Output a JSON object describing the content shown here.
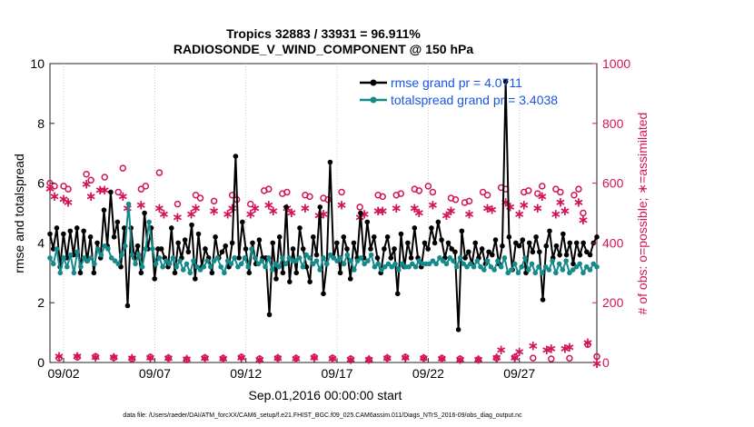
{
  "chart_data": {
    "type": "line",
    "title_line1": "Tropics 32883 / 33931 = 96.911%",
    "title_line2": "RADIOSONDE_V_WIND_COMPONENT @ 150 hPa",
    "xlabel": "Sep.01,2016 00:00:00 start",
    "ylabel_left": "rmse and totalspread",
    "ylabel_right": "# of obs: o=possible; ∗=assimilated",
    "footer": "data file: /Users/raeder/DAI/ATM_forcXX/CAM6_setup/f.e21.FHIST_BGC.f09_025.CAM6assim.011/Diags_NTrS_2016-09/obs_diag_output.nc",
    "x_ticks": [
      {
        "value": 2,
        "label": "09/02"
      },
      {
        "value": 7,
        "label": "09/07"
      },
      {
        "value": 12,
        "label": "09/12"
      },
      {
        "value": 17,
        "label": "09/17"
      },
      {
        "value": 22,
        "label": "09/22"
      },
      {
        "value": 27,
        "label": "09/27"
      }
    ],
    "xlim": [
      1.25,
      31.25
    ],
    "ylim_left": [
      0,
      10
    ],
    "ylim_right": [
      0,
      1000
    ],
    "yticks_left": [
      "0",
      "2",
      "4",
      "6",
      "8",
      "10"
    ],
    "yticks_right": [
      "0",
      "200",
      "400",
      "600",
      "800",
      "1000"
    ],
    "colors": {
      "rmse": "#000000",
      "spread": "#158a8a",
      "obs": "#d4145a",
      "legend_text": "#1a56e0"
    },
    "series": [
      {
        "name": "rmse grand pr = 4.0711",
        "key": "rmse",
        "axis": "left",
        "values": [
          4.3,
          3.8,
          4.5,
          3.2,
          4.3,
          3.5,
          4.4,
          3.6,
          4.5,
          3.0,
          4.4,
          3.4,
          4.2,
          3.0,
          4.0,
          3.5,
          5.1,
          3.9,
          5.7,
          4.2,
          4.7,
          3.2,
          4.5,
          1.9,
          4.5,
          3.5,
          3.9,
          3.0,
          5.0,
          3.8,
          4.5,
          2.8,
          3.8,
          3.8,
          3.5,
          3.2,
          4.5,
          3.0,
          4.0,
          3.5,
          4.1,
          3.7,
          4.6,
          2.8,
          4.3,
          3.2,
          3.8,
          3.5,
          3.0,
          4.2,
          3.5,
          3.7,
          3.9,
          3.2,
          4.0,
          6.9,
          3.5,
          4.7,
          3.8,
          3.0,
          4.0,
          3.3,
          4.1,
          3.5,
          3.5,
          1.6,
          4.0,
          2.8,
          4.2,
          3.0,
          5.2,
          2.7,
          3.8,
          3.0,
          4.5,
          3.8,
          3.2,
          2.7,
          4.2,
          3.6,
          5.2,
          2.3,
          3.3,
          6.7,
          3.5,
          4.0,
          3.0,
          4.2,
          3.8,
          2.8,
          4.0,
          3.5,
          5.0,
          3.5,
          4.7,
          3.8,
          4.2,
          3.5,
          3.0,
          3.8,
          4.2,
          3.5,
          3.8,
          2.3,
          4.3,
          3.2,
          4.0,
          3.5,
          4.5,
          3.5,
          3.2,
          4.0,
          3.8,
          4.5,
          4.0,
          4.7,
          4.1,
          3.5,
          4.0,
          3.8,
          3.7,
          1.1,
          4.4,
          3.5,
          3.7,
          3.3,
          4.0,
          3.5,
          3.8,
          3.3,
          3.7,
          3.6,
          4.1,
          3.3,
          3.9,
          9.4,
          4.2,
          3.1,
          4.0,
          3.9,
          4.1,
          3.0,
          4.0,
          3.7,
          4.2,
          3.7,
          2.1,
          3.9,
          4.4,
          3.5,
          3.9,
          3.6,
          4.3,
          3.6,
          4.0,
          3.3,
          4.0,
          3.6,
          4.0,
          3.7,
          3.6,
          4.0,
          4.2
        ]
      },
      {
        "name": "totalspread grand pr = 3.4038",
        "key": "spread",
        "axis": "left",
        "values": [
          3.5,
          3.3,
          3.8,
          3.0,
          3.5,
          3.2,
          3.6,
          3.0,
          3.7,
          3.2,
          3.5,
          3.4,
          3.5,
          3.3,
          3.8,
          3.6,
          3.9,
          3.8,
          3.5,
          3.4,
          3.3,
          3.6,
          3.9,
          5.3,
          3.6,
          3.3,
          3.6,
          3.2,
          3.8,
          4.7,
          3.8,
          3.3,
          3.5,
          3.2,
          3.4,
          3.3,
          3.5,
          3.2,
          3.4,
          3.1,
          3.3,
          3.0,
          3.4,
          3.2,
          3.1,
          3.2,
          3.4,
          3.2,
          3.4,
          3.5,
          3.2,
          3.0,
          3.4,
          3.3,
          3.5,
          3.2,
          3.3,
          3.5,
          3.2,
          3.8,
          3.5,
          3.3,
          3.4,
          3.2,
          3.5,
          3.1,
          3.3,
          3.2,
          3.5,
          3.3,
          3.5,
          3.4,
          3.4,
          3.5,
          3.2,
          3.6,
          3.5,
          3.3,
          3.4,
          3.1,
          3.5,
          3.3,
          3.6,
          3.5,
          3.4,
          3.5,
          3.3,
          3.6,
          3.4,
          3.1,
          3.4,
          3.5,
          3.3,
          3.4,
          3.6,
          3.2,
          3.3,
          3.1,
          3.2,
          3.3,
          3.2,
          3.3,
          3.1,
          3.3,
          3.2,
          3.2,
          3.3,
          3.2,
          3.4,
          3.3,
          3.3,
          3.3,
          3.4,
          3.3,
          3.5,
          3.4,
          3.3,
          3.5,
          3.4,
          3.2,
          3.5,
          3.3,
          3.2,
          3.3,
          3.2,
          3.4,
          3.2,
          3.1,
          3.4,
          3.2,
          3.1,
          3.4,
          3.2,
          3.5,
          3.0,
          3.1,
          3.3,
          3.0,
          3.2,
          3.5,
          3.1,
          3.3,
          3.0,
          3.2,
          3.0,
          3.2,
          3.1,
          3.4,
          3.0,
          3.3,
          3.1,
          3.4,
          3.0,
          3.1,
          3.2,
          3.3,
          3.0,
          3.2,
          3.1,
          3.3,
          3.2
        ]
      },
      {
        "name": "possible obs",
        "key": "possible",
        "axis": "right",
        "marker": "circle",
        "points": [
          [
            1.25,
            600
          ],
          [
            1.75,
            15
          ],
          [
            2.25,
            580
          ],
          [
            2.75,
            18
          ],
          [
            3.25,
            630
          ],
          [
            3.75,
            20
          ],
          [
            4.25,
            620
          ],
          [
            4.75,
            16
          ],
          [
            5.25,
            650
          ],
          [
            5.75,
            12
          ],
          [
            6.25,
            580
          ],
          [
            6.75,
            18
          ],
          [
            7.25,
            635
          ],
          [
            7.75,
            15
          ],
          [
            8.25,
            530
          ],
          [
            8.75,
            10
          ],
          [
            9.25,
            560
          ],
          [
            9.75,
            16
          ],
          [
            10.25,
            540
          ],
          [
            10.75,
            14
          ],
          [
            11.25,
            560
          ],
          [
            11.75,
            18
          ],
          [
            12.25,
            530
          ],
          [
            12.75,
            12
          ],
          [
            13.25,
            580
          ],
          [
            13.75,
            15
          ],
          [
            14.25,
            570
          ],
          [
            14.75,
            14
          ],
          [
            15.25,
            560
          ],
          [
            15.75,
            18
          ],
          [
            16.25,
            550
          ],
          [
            16.75,
            15
          ],
          [
            17.25,
            570
          ],
          [
            17.75,
            12
          ],
          [
            18.25,
            520
          ],
          [
            18.75,
            10
          ],
          [
            19.25,
            560
          ],
          [
            19.75,
            15
          ],
          [
            20.25,
            560
          ],
          [
            20.75,
            18
          ],
          [
            21.25,
            580
          ],
          [
            21.75,
            15
          ],
          [
            22.25,
            570
          ],
          [
            22.75,
            14
          ],
          [
            23.25,
            550
          ],
          [
            23.75,
            12
          ],
          [
            24.25,
            540
          ],
          [
            24.75,
            10
          ],
          [
            25.25,
            560
          ],
          [
            25.75,
            15
          ],
          [
            26.25,
            580
          ],
          [
            26.75,
            18
          ],
          [
            27.25,
            570
          ],
          [
            27.75,
            15
          ],
          [
            28.25,
            590
          ],
          [
            28.75,
            12
          ],
          [
            29.25,
            570
          ],
          [
            29.75,
            14
          ],
          [
            30.25,
            580
          ],
          [
            30.75,
            60
          ],
          [
            31.25,
            20
          ],
          [
            1.5,
            590
          ],
          [
            2.0,
            590
          ],
          [
            3.5,
            610
          ],
          [
            5.0,
            570
          ],
          [
            6.5,
            590
          ],
          [
            9.5,
            550
          ],
          [
            11.5,
            545
          ],
          [
            13.0,
            575
          ],
          [
            14.0,
            565
          ],
          [
            15.5,
            555
          ],
          [
            16.5,
            545
          ],
          [
            19.5,
            555
          ],
          [
            20.5,
            565
          ],
          [
            21.5,
            575
          ],
          [
            22.0,
            590
          ],
          [
            23.5,
            545
          ],
          [
            24.0,
            535
          ],
          [
            25.0,
            570
          ],
          [
            26.0,
            585
          ],
          [
            27.5,
            575
          ],
          [
            28.0,
            565
          ],
          [
            29.0,
            580
          ],
          [
            30.0,
            560
          ],
          [
            30.5,
            500
          ]
        ]
      },
      {
        "name": "assimilated obs",
        "key": "assimilated",
        "axis": "right",
        "marker": "star",
        "points": [
          [
            1.25,
            585
          ],
          [
            1.75,
            25
          ],
          [
            2.25,
            540
          ],
          [
            2.75,
            24
          ],
          [
            3.25,
            600
          ],
          [
            3.75,
            22
          ],
          [
            4.25,
            580
          ],
          [
            4.75,
            22
          ],
          [
            5.25,
            560
          ],
          [
            5.75,
            18
          ],
          [
            6.25,
            530
          ],
          [
            6.75,
            20
          ],
          [
            7.25,
            520
          ],
          [
            7.75,
            18
          ],
          [
            8.25,
            490
          ],
          [
            8.75,
            15
          ],
          [
            9.25,
            520
          ],
          [
            9.75,
            18
          ],
          [
            10.25,
            510
          ],
          [
            10.75,
            16
          ],
          [
            11.25,
            520
          ],
          [
            11.75,
            20
          ],
          [
            12.25,
            500
          ],
          [
            12.75,
            14
          ],
          [
            13.25,
            530
          ],
          [
            13.75,
            18
          ],
          [
            14.25,
            520
          ],
          [
            14.75,
            16
          ],
          [
            15.25,
            520
          ],
          [
            15.75,
            20
          ],
          [
            16.25,
            500
          ],
          [
            16.75,
            16
          ],
          [
            17.25,
            530
          ],
          [
            17.75,
            14
          ],
          [
            18.25,
            490
          ],
          [
            18.75,
            14
          ],
          [
            19.25,
            510
          ],
          [
            19.75,
            18
          ],
          [
            20.25,
            520
          ],
          [
            20.75,
            20
          ],
          [
            21.25,
            520
          ],
          [
            21.75,
            18
          ],
          [
            22.25,
            530
          ],
          [
            22.75,
            16
          ],
          [
            23.25,
            510
          ],
          [
            23.75,
            14
          ],
          [
            24.25,
            500
          ],
          [
            24.75,
            14
          ],
          [
            25.25,
            520
          ],
          [
            25.75,
            20
          ],
          [
            26.25,
            540
          ],
          [
            26.75,
            20
          ],
          [
            27.25,
            530
          ],
          [
            27.75,
            60
          ],
          [
            28.25,
            560
          ],
          [
            28.75,
            50
          ],
          [
            29.25,
            540
          ],
          [
            29.75,
            55
          ],
          [
            30.25,
            540
          ],
          [
            30.75,
            70
          ],
          [
            31.25,
            0
          ],
          [
            1.5,
            560
          ],
          [
            2.0,
            550
          ],
          [
            3.5,
            560
          ],
          [
            4.0,
            580
          ],
          [
            5.5,
            520
          ],
          [
            7.5,
            500
          ],
          [
            9.0,
            500
          ],
          [
            11.0,
            500
          ],
          [
            12.5,
            520
          ],
          [
            13.5,
            510
          ],
          [
            14.5,
            505
          ],
          [
            16.0,
            495
          ],
          [
            18.5,
            500
          ],
          [
            19.5,
            510
          ],
          [
            21.5,
            505
          ],
          [
            23.0,
            495
          ],
          [
            25.5,
            515
          ],
          [
            26.5,
            525
          ],
          [
            27.0,
            500
          ],
          [
            28.0,
            520
          ],
          [
            29.0,
            500
          ],
          [
            29.5,
            510
          ],
          [
            30.5,
            480
          ],
          [
            26.0,
            45
          ],
          [
            27.0,
            40
          ],
          [
            28.5,
            45
          ],
          [
            29.5,
            50
          ]
        ]
      }
    ],
    "legend": {
      "placement": "top-right",
      "entries": [
        "rmse grand pr = 4.0711",
        "totalspread grand pr = 3.4038"
      ]
    }
  }
}
